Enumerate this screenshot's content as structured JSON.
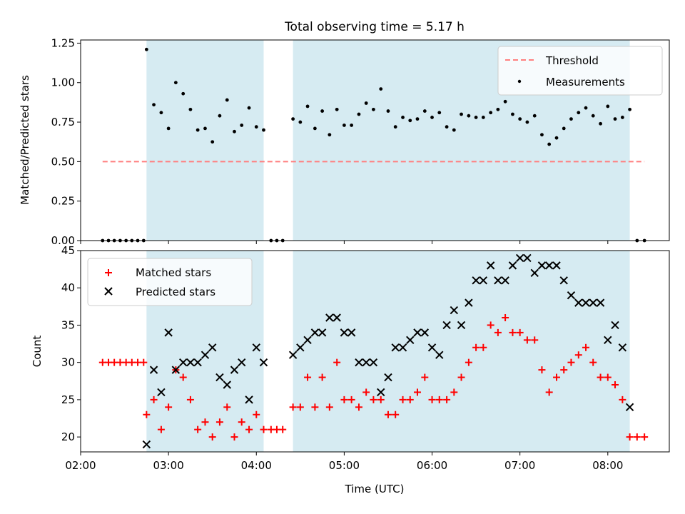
{
  "title": "Total observing time = 5.17 h",
  "colors": {
    "shade": "#add8e6",
    "matched": "#ff0000",
    "predicted": "#000000",
    "threshold": "#ff7f7f"
  },
  "chart_data": [
    {
      "type": "scatter",
      "ylabel": "Matched/Predicted stars",
      "xlim": [
        2.0,
        8.7
      ],
      "ylim": [
        0,
        1.27
      ],
      "yticks": [
        0,
        0.25,
        0.5,
        0.75,
        1.0,
        1.25
      ],
      "ytick_labels": [
        "0.00",
        "0.25",
        "0.50",
        "0.75",
        "1.00",
        "1.25"
      ],
      "observing_windows": [
        [
          2.75,
          4.083
        ],
        [
          4.417,
          8.25
        ]
      ],
      "threshold": {
        "label": "Threshold",
        "value": 0.5,
        "x_range": [
          2.25,
          8.417
        ]
      },
      "legend": {
        "placement": "top-right",
        "entries": [
          "Threshold",
          "Measurements"
        ]
      },
      "series": [
        {
          "name": "Measurements",
          "x": [
            2.25,
            2.317,
            2.383,
            2.45,
            2.517,
            2.583,
            2.65,
            2.717,
            2.75,
            2.833,
            2.917,
            3.0,
            3.083,
            3.167,
            3.25,
            3.333,
            3.417,
            3.5,
            3.583,
            3.667,
            3.75,
            3.833,
            3.917,
            4.0,
            4.083,
            4.167,
            4.233,
            4.3,
            4.417,
            4.5,
            4.583,
            4.667,
            4.75,
            4.833,
            4.917,
            5.0,
            5.083,
            5.167,
            5.25,
            5.333,
            5.417,
            5.5,
            5.583,
            5.667,
            5.75,
            5.833,
            5.917,
            6.0,
            6.083,
            6.167,
            6.25,
            6.333,
            6.417,
            6.5,
            6.583,
            6.667,
            6.75,
            6.833,
            6.917,
            7.0,
            7.083,
            7.167,
            7.25,
            7.333,
            7.417,
            7.5,
            7.583,
            7.667,
            7.75,
            7.833,
            7.917,
            8.0,
            8.083,
            8.167,
            8.25,
            8.333,
            8.417
          ],
          "y": [
            0,
            0,
            0,
            0,
            0,
            0,
            0,
            0,
            1.21,
            0.86,
            0.81,
            0.71,
            1.0,
            0.93,
            0.83,
            0.7,
            0.71,
            0.625,
            0.79,
            0.89,
            0.69,
            0.73,
            0.84,
            0.72,
            0.7,
            0,
            0,
            0,
            0.77,
            0.75,
            0.85,
            0.71,
            0.82,
            0.67,
            0.83,
            0.73,
            0.73,
            0.8,
            0.87,
            0.83,
            0.96,
            0.82,
            0.72,
            0.78,
            0.76,
            0.77,
            0.82,
            0.78,
            0.81,
            0.72,
            0.7,
            0.8,
            0.79,
            0.78,
            0.78,
            0.81,
            0.83,
            0.88,
            0.8,
            0.77,
            0.75,
            0.79,
            0.67,
            0.61,
            0.65,
            0.71,
            0.77,
            0.81,
            0.84,
            0.79,
            0.74,
            0.85,
            0.77,
            0.78,
            0.83,
            0,
            0
          ]
        }
      ]
    },
    {
      "type": "scatter",
      "xlabel": "Time (UTC)",
      "ylabel": "Count",
      "xlim": [
        2.0,
        8.7
      ],
      "ylim": [
        18,
        45
      ],
      "xticks": [
        2,
        3,
        4,
        5,
        6,
        7,
        8
      ],
      "xtick_labels": [
        "02:00",
        "03:00",
        "04:00",
        "05:00",
        "06:00",
        "07:00",
        "08:00"
      ],
      "yticks": [
        20,
        25,
        30,
        35,
        40,
        45
      ],
      "ytick_labels": [
        "20",
        "25",
        "30",
        "35",
        "40",
        "45"
      ],
      "observing_windows": [
        [
          2.75,
          4.083
        ],
        [
          4.417,
          8.25
        ]
      ],
      "legend": {
        "placement": "top-left",
        "entries": [
          "Matched stars",
          "Predicted stars"
        ]
      },
      "series": [
        {
          "name": "Matched stars",
          "marker": "+",
          "x": [
            2.25,
            2.317,
            2.383,
            2.45,
            2.517,
            2.583,
            2.65,
            2.717,
            2.75,
            2.833,
            2.917,
            3.0,
            3.083,
            3.167,
            3.25,
            3.333,
            3.417,
            3.5,
            3.583,
            3.667,
            3.75,
            3.833,
            3.917,
            4.0,
            4.083,
            4.167,
            4.233,
            4.3,
            4.417,
            4.5,
            4.583,
            4.667,
            4.75,
            4.833,
            4.917,
            5.0,
            5.083,
            5.167,
            5.25,
            5.333,
            5.417,
            5.5,
            5.583,
            5.667,
            5.75,
            5.833,
            5.917,
            6.0,
            6.083,
            6.167,
            6.25,
            6.333,
            6.417,
            6.5,
            6.583,
            6.667,
            6.75,
            6.833,
            6.917,
            7.0,
            7.083,
            7.167,
            7.25,
            7.333,
            7.417,
            7.5,
            7.583,
            7.667,
            7.75,
            7.833,
            7.917,
            8.0,
            8.083,
            8.167,
            8.25,
            8.333,
            8.417
          ],
          "y": [
            30,
            30,
            30,
            30,
            30,
            30,
            30,
            30,
            23,
            25,
            21,
            24,
            29,
            28,
            25,
            21,
            22,
            20,
            22,
            24,
            20,
            22,
            21,
            23,
            21,
            21,
            21,
            21,
            24,
            24,
            28,
            24,
            28,
            24,
            30,
            25,
            25,
            24,
            26,
            25,
            25,
            23,
            23,
            25,
            25,
            26,
            28,
            25,
            25,
            25,
            26,
            28,
            30,
            32,
            32,
            35,
            34,
            36,
            34,
            34,
            33,
            33,
            29,
            26,
            28,
            29,
            30,
            31,
            32,
            30,
            28,
            28,
            27,
            25,
            20,
            20,
            20
          ]
        },
        {
          "name": "Predicted stars",
          "marker": "x",
          "x": [
            2.75,
            2.833,
            2.917,
            3.0,
            3.083,
            3.167,
            3.25,
            3.333,
            3.417,
            3.5,
            3.583,
            3.667,
            3.75,
            3.833,
            3.917,
            4.0,
            4.083,
            4.417,
            4.5,
            4.583,
            4.667,
            4.75,
            4.833,
            4.917,
            5.0,
            5.083,
            5.167,
            5.25,
            5.333,
            5.417,
            5.5,
            5.583,
            5.667,
            5.75,
            5.833,
            5.917,
            6.0,
            6.083,
            6.167,
            6.25,
            6.333,
            6.417,
            6.5,
            6.583,
            6.667,
            6.75,
            6.833,
            6.917,
            7.0,
            7.083,
            7.167,
            7.25,
            7.333,
            7.417,
            7.5,
            7.583,
            7.667,
            7.75,
            7.833,
            7.917,
            8.0,
            8.083,
            8.167,
            8.25
          ],
          "y": [
            19,
            29,
            26,
            34,
            29,
            30,
            30,
            30,
            31,
            32,
            28,
            27,
            29,
            30,
            25,
            32,
            30,
            31,
            32,
            33,
            34,
            34,
            36,
            36,
            34,
            34,
            30,
            30,
            30,
            26,
            28,
            32,
            32,
            33,
            34,
            34,
            32,
            31,
            35,
            37,
            35,
            38,
            41,
            41,
            43,
            41,
            41,
            43,
            44,
            44,
            42,
            43,
            43,
            43,
            41,
            39,
            38,
            38,
            38,
            38,
            33,
            35,
            32,
            24
          ]
        }
      ]
    }
  ]
}
